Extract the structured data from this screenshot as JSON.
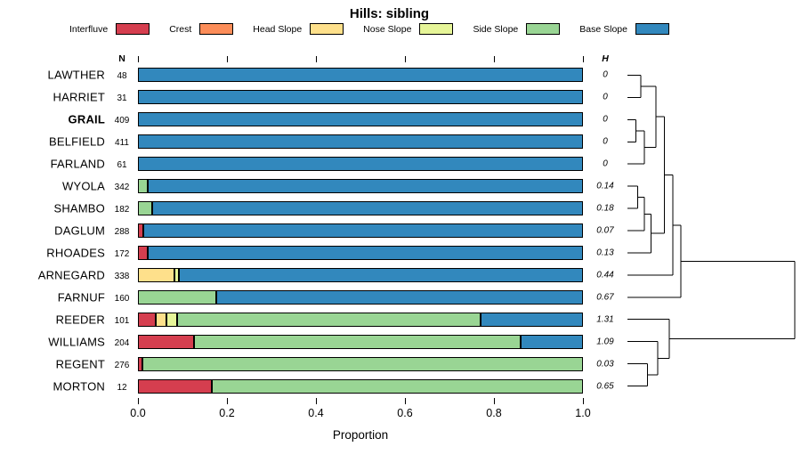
{
  "title": "Hills: sibling",
  "legend": {
    "items": [
      {
        "label": "Interfluve",
        "color": "#d53e4f"
      },
      {
        "label": "Crest",
        "color": "#fc8d59"
      },
      {
        "label": "Head Slope",
        "color": "#fee08b"
      },
      {
        "label": "Nose Slope",
        "color": "#e6f598"
      },
      {
        "label": "Side Slope",
        "color": "#99d594"
      },
      {
        "label": "Base Slope",
        "color": "#3288bd"
      }
    ]
  },
  "columns": {
    "n_header": "N",
    "h_header": "H"
  },
  "chart_data": {
    "type": "bar",
    "variant": "horizontal-stacked-proportion",
    "title": "Hills: sibling",
    "xlabel": "Proportion",
    "xlim": [
      0,
      1
    ],
    "grid": false,
    "legend_position": "top",
    "x_ticks": [
      {
        "value": 0.0,
        "label": "0.0"
      },
      {
        "value": 0.2,
        "label": "0.2"
      },
      {
        "value": 0.4,
        "label": "0.4"
      },
      {
        "value": 0.6,
        "label": "0.6"
      },
      {
        "value": 0.8,
        "label": "0.8"
      },
      {
        "value": 1.0,
        "label": "1.0"
      }
    ],
    "categories": [
      "Interfluve",
      "Crest",
      "Head Slope",
      "Nose Slope",
      "Side Slope",
      "Base Slope"
    ],
    "rows": [
      {
        "name": "LAWTHER",
        "n": "48",
        "h": "0",
        "bold": false,
        "values": [
          0,
          0,
          0,
          0,
          0,
          1
        ]
      },
      {
        "name": "HARRIET",
        "n": "31",
        "h": "0",
        "bold": false,
        "values": [
          0,
          0,
          0,
          0,
          0,
          1
        ]
      },
      {
        "name": "GRAIL",
        "n": "409",
        "h": "0",
        "bold": true,
        "values": [
          0,
          0,
          0,
          0,
          0,
          1
        ]
      },
      {
        "name": "BELFIELD",
        "n": "411",
        "h": "0",
        "bold": false,
        "values": [
          0,
          0,
          0,
          0,
          0,
          1
        ]
      },
      {
        "name": "FARLAND",
        "n": "61",
        "h": "0",
        "bold": false,
        "values": [
          0,
          0,
          0,
          0,
          0,
          1
        ]
      },
      {
        "name": "WYOLA",
        "n": "342",
        "h": "0.14",
        "bold": false,
        "values": [
          0,
          0,
          0,
          0,
          0.022,
          0.978
        ]
      },
      {
        "name": "SHAMBO",
        "n": "182",
        "h": "0.18",
        "bold": false,
        "values": [
          0,
          0,
          0,
          0,
          0.032,
          0.968
        ]
      },
      {
        "name": "DAGLUM",
        "n": "288",
        "h": "0.07",
        "bold": false,
        "values": [
          0.012,
          0,
          0,
          0,
          0,
          0.988
        ]
      },
      {
        "name": "RHOADES",
        "n": "172",
        "h": "0.13",
        "bold": false,
        "values": [
          0.022,
          0,
          0,
          0,
          0,
          0.978
        ]
      },
      {
        "name": "ARNEGARD",
        "n": "338",
        "h": "0.44",
        "bold": false,
        "values": [
          0,
          0,
          0.082,
          0.01,
          0,
          0.908
        ]
      },
      {
        "name": "FARNUF",
        "n": "160",
        "h": "0.67",
        "bold": false,
        "values": [
          0,
          0,
          0,
          0,
          0.175,
          0.825
        ]
      },
      {
        "name": "REEDER",
        "n": "101",
        "h": "1.31",
        "bold": false,
        "values": [
          0.04,
          0,
          0.023,
          0.025,
          0.682,
          0.23
        ]
      },
      {
        "name": "WILLIAMS",
        "n": "204",
        "h": "1.09",
        "bold": false,
        "values": [
          0.125,
          0,
          0,
          0,
          0.735,
          0.14
        ]
      },
      {
        "name": "REGENT",
        "n": "276",
        "h": "0.03",
        "bold": false,
        "values": [
          0.01,
          0,
          0,
          0,
          0.99,
          0
        ]
      },
      {
        "name": "MORTON",
        "n": "12",
        "h": "0.65",
        "bold": false,
        "values": [
          0.165,
          0,
          0,
          0,
          0.835,
          0
        ]
      }
    ]
  },
  "dendrogram": {
    "merges": [
      {
        "a": "L2",
        "b": "L3",
        "h": 0.05
      },
      {
        "a": "M0",
        "b": "L4",
        "h": 0.1
      },
      {
        "a": "L0",
        "b": "L1",
        "h": 0.08
      },
      {
        "a": "M2",
        "b": "M1",
        "h": 0.17
      },
      {
        "a": "L5",
        "b": "L6",
        "h": 0.06
      },
      {
        "a": "M4",
        "b": "L7",
        "h": 0.1
      },
      {
        "a": "M5",
        "b": "L8",
        "h": 0.14
      },
      {
        "a": "M3",
        "b": "M6",
        "h": 0.22
      },
      {
        "a": "M7",
        "b": "L9",
        "h": 0.27
      },
      {
        "a": "M8",
        "b": "L10",
        "h": 0.32
      },
      {
        "a": "L13",
        "b": "L14",
        "h": 0.12
      },
      {
        "a": "L12",
        "b": "M10",
        "h": 0.18
      },
      {
        "a": "L11",
        "b": "M11",
        "h": 0.25
      },
      {
        "a": "M9",
        "b": "M12",
        "h": 1.0
      }
    ]
  }
}
